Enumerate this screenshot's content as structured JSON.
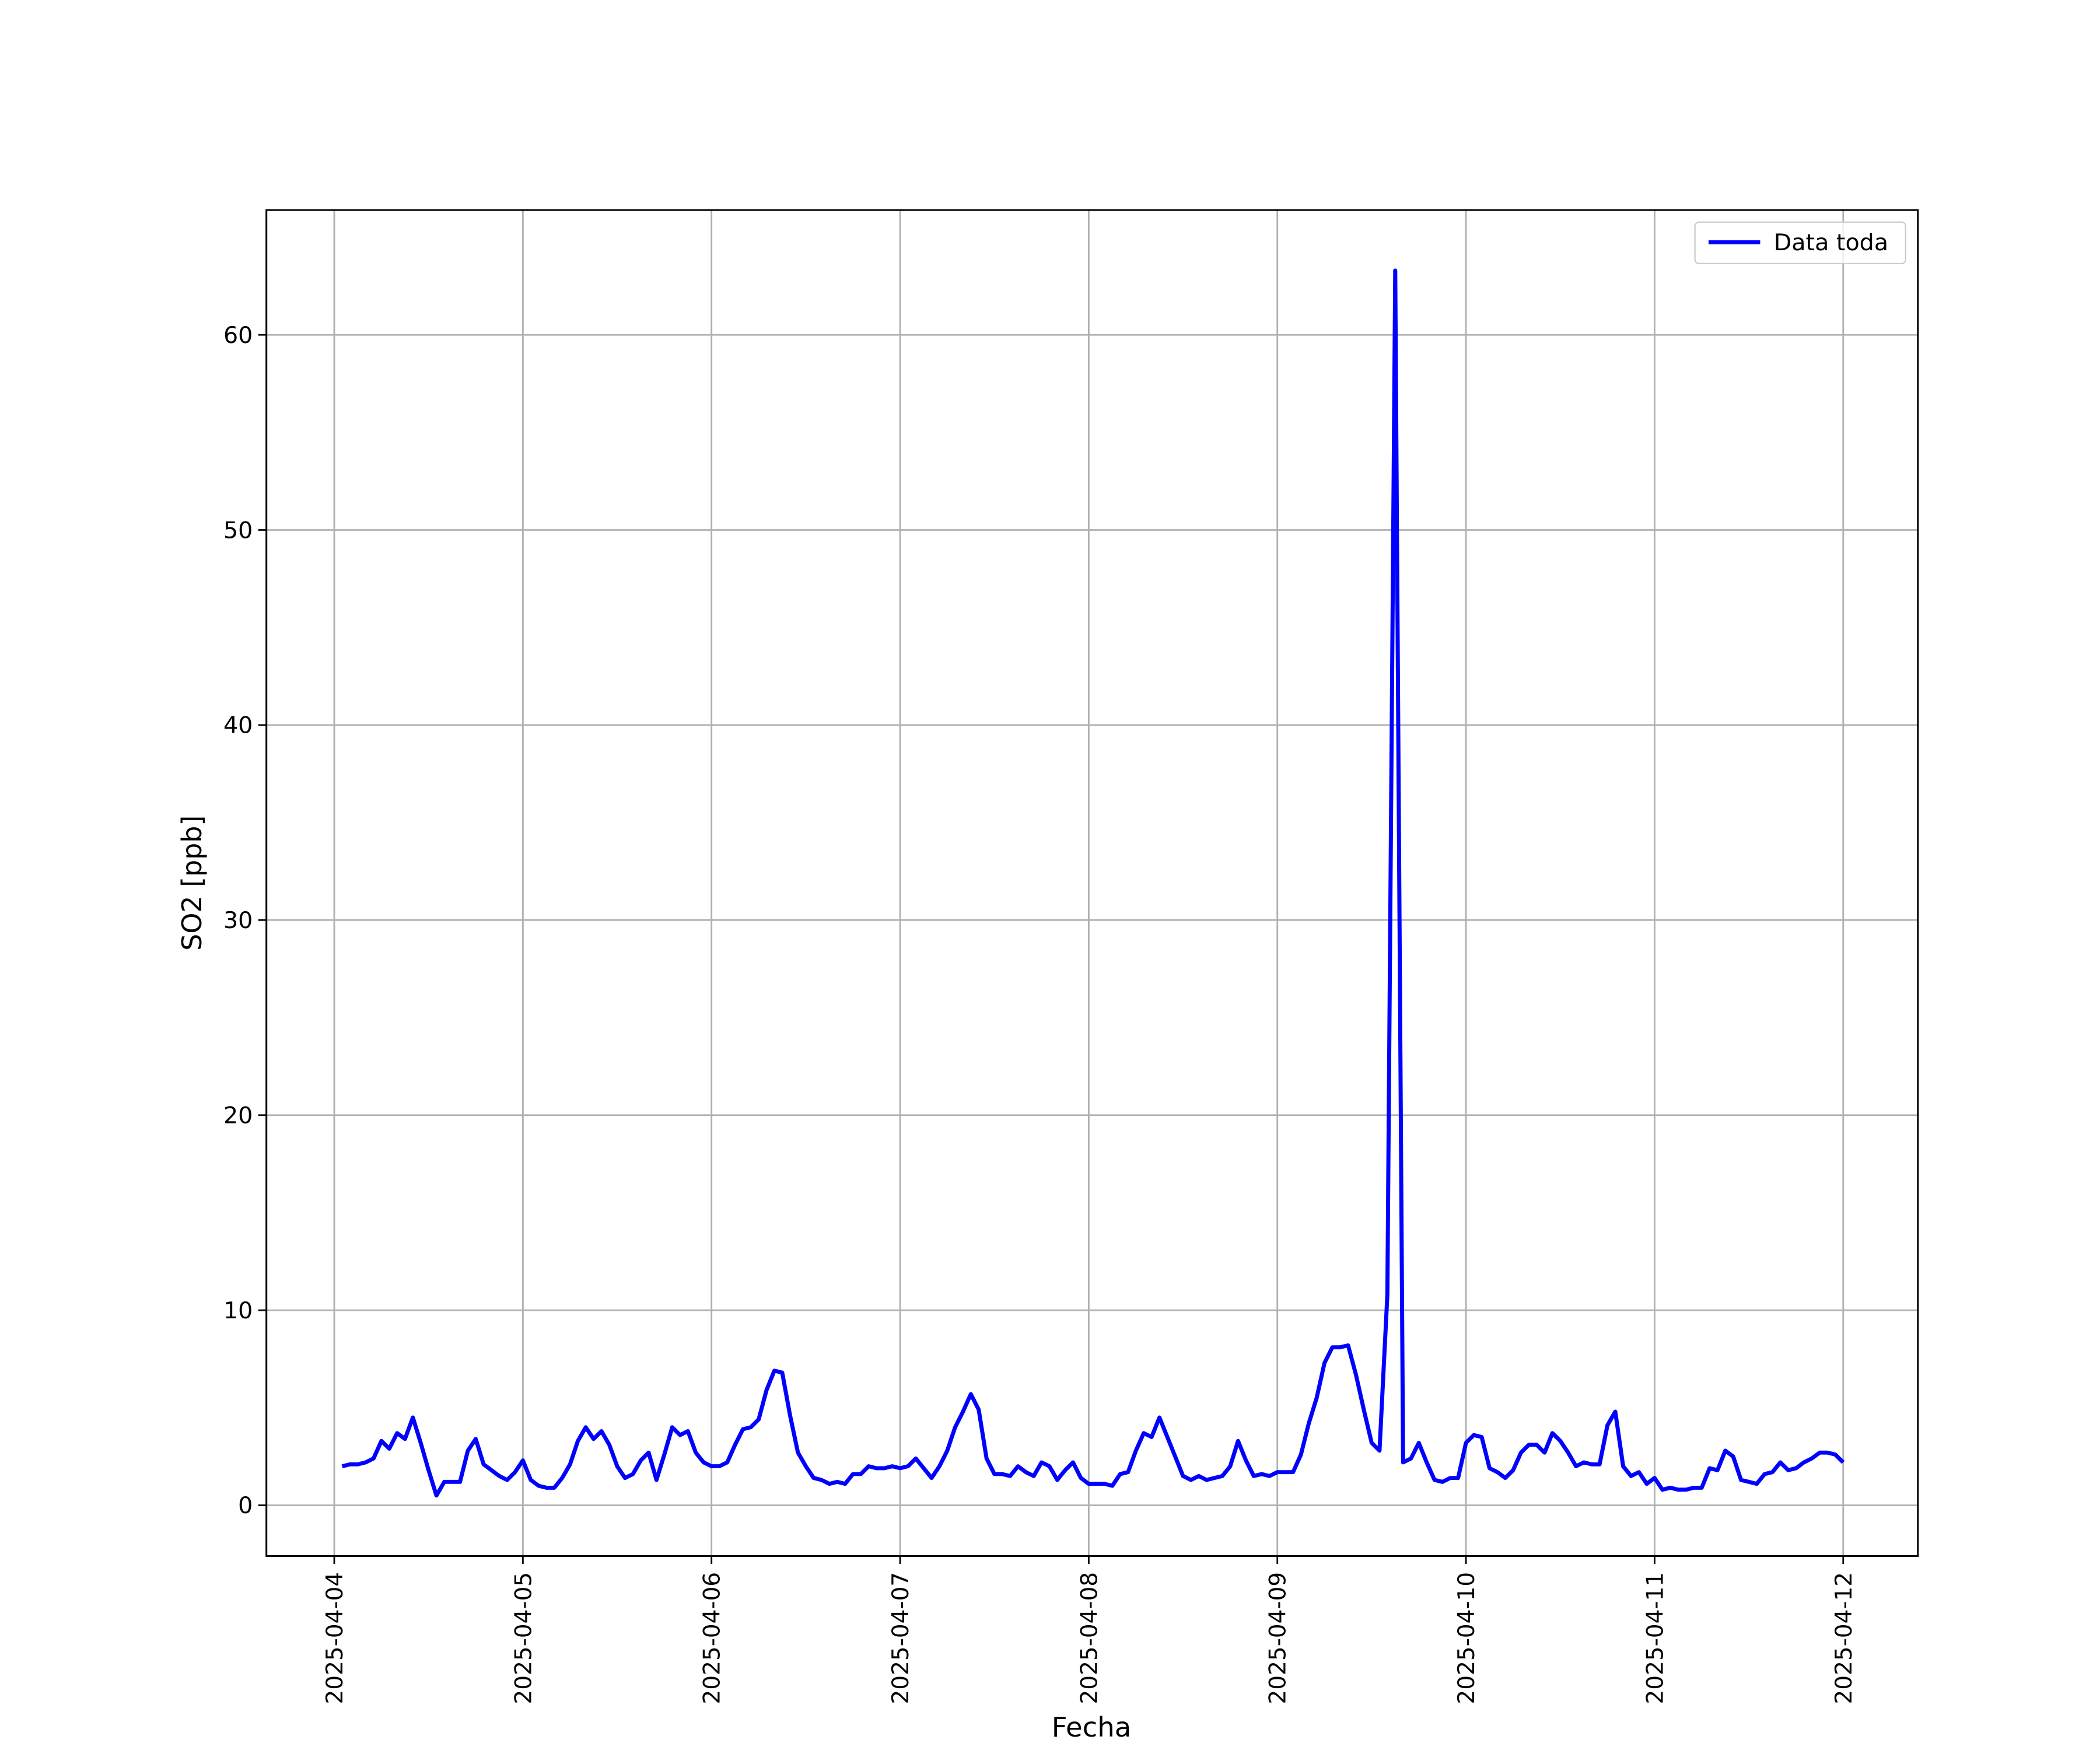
{
  "chart_data": {
    "type": "line",
    "xlabel": "Fecha",
    "ylabel": "SO2 [ppb]",
    "x": [
      "2025-04-04 01:00",
      "2025-04-04 02:00",
      "2025-04-04 03:00",
      "2025-04-04 04:00",
      "2025-04-04 05:00",
      "2025-04-04 06:00",
      "2025-04-04 07:00",
      "2025-04-04 08:00",
      "2025-04-04 09:00",
      "2025-04-04 10:00",
      "2025-04-04 11:00",
      "2025-04-04 12:00",
      "2025-04-04 13:00",
      "2025-04-04 14:00",
      "2025-04-04 15:00",
      "2025-04-04 16:00",
      "2025-04-04 17:00",
      "2025-04-04 18:00",
      "2025-04-04 19:00",
      "2025-04-04 20:00",
      "2025-04-04 21:00",
      "2025-04-04 22:00",
      "2025-04-04 23:00",
      "2025-04-05 00:00",
      "2025-04-05 01:00",
      "2025-04-05 02:00",
      "2025-04-05 03:00",
      "2025-04-05 04:00",
      "2025-04-05 05:00",
      "2025-04-05 06:00",
      "2025-04-05 07:00",
      "2025-04-05 08:00",
      "2025-04-05 09:00",
      "2025-04-05 10:00",
      "2025-04-05 11:00",
      "2025-04-05 12:00",
      "2025-04-05 13:00",
      "2025-04-05 14:00",
      "2025-04-05 15:00",
      "2025-04-05 16:00",
      "2025-04-05 17:00",
      "2025-04-05 18:00",
      "2025-04-05 19:00",
      "2025-04-05 20:00",
      "2025-04-05 21:00",
      "2025-04-05 22:00",
      "2025-04-05 23:00",
      "2025-04-06 00:00",
      "2025-04-06 01:00",
      "2025-04-06 02:00",
      "2025-04-06 03:00",
      "2025-04-06 04:00",
      "2025-04-06 05:00",
      "2025-04-06 06:00",
      "2025-04-06 07:00",
      "2025-04-06 08:00",
      "2025-04-06 09:00",
      "2025-04-06 10:00",
      "2025-04-06 11:00",
      "2025-04-06 12:00",
      "2025-04-06 13:00",
      "2025-04-06 14:00",
      "2025-04-06 15:00",
      "2025-04-06 16:00",
      "2025-04-06 17:00",
      "2025-04-06 18:00",
      "2025-04-06 19:00",
      "2025-04-06 20:00",
      "2025-04-06 21:00",
      "2025-04-06 22:00",
      "2025-04-06 23:00",
      "2025-04-07 00:00",
      "2025-04-07 01:00",
      "2025-04-07 02:00",
      "2025-04-07 03:00",
      "2025-04-07 04:00",
      "2025-04-07 05:00",
      "2025-04-07 06:00",
      "2025-04-07 07:00",
      "2025-04-07 08:00",
      "2025-04-07 09:00",
      "2025-04-07 10:00",
      "2025-04-07 11:00",
      "2025-04-07 12:00",
      "2025-04-07 13:00",
      "2025-04-07 14:00",
      "2025-04-07 15:00",
      "2025-04-07 16:00",
      "2025-04-07 17:00",
      "2025-04-07 18:00",
      "2025-04-07 19:00",
      "2025-04-07 20:00",
      "2025-04-07 21:00",
      "2025-04-07 22:00",
      "2025-04-07 23:00",
      "2025-04-08 00:00",
      "2025-04-08 01:00",
      "2025-04-08 02:00",
      "2025-04-08 03:00",
      "2025-04-08 04:00",
      "2025-04-08 05:00",
      "2025-04-08 06:00",
      "2025-04-08 07:00",
      "2025-04-08 08:00",
      "2025-04-08 09:00",
      "2025-04-08 10:00",
      "2025-04-08 11:00",
      "2025-04-08 12:00",
      "2025-04-08 13:00",
      "2025-04-08 14:00",
      "2025-04-08 15:00",
      "2025-04-08 16:00",
      "2025-04-08 17:00",
      "2025-04-08 18:00",
      "2025-04-08 19:00",
      "2025-04-08 20:00",
      "2025-04-08 21:00",
      "2025-04-08 22:00",
      "2025-04-08 23:00",
      "2025-04-09 00:00",
      "2025-04-09 01:00",
      "2025-04-09 02:00",
      "2025-04-09 03:00",
      "2025-04-09 04:00",
      "2025-04-09 05:00",
      "2025-04-09 06:00",
      "2025-04-09 07:00",
      "2025-04-09 08:00",
      "2025-04-09 09:00",
      "2025-04-09 10:00",
      "2025-04-09 11:00",
      "2025-04-09 12:00",
      "2025-04-09 13:00",
      "2025-04-09 14:00",
      "2025-04-09 15:00",
      "2025-04-09 16:00",
      "2025-04-09 17:00",
      "2025-04-09 18:00",
      "2025-04-09 19:00",
      "2025-04-09 20:00",
      "2025-04-09 21:00",
      "2025-04-09 22:00",
      "2025-04-09 23:00",
      "2025-04-10 00:00",
      "2025-04-10 01:00",
      "2025-04-10 02:00",
      "2025-04-10 03:00",
      "2025-04-10 04:00",
      "2025-04-10 05:00",
      "2025-04-10 06:00",
      "2025-04-10 07:00",
      "2025-04-10 08:00",
      "2025-04-10 09:00",
      "2025-04-10 10:00",
      "2025-04-10 11:00",
      "2025-04-10 12:00",
      "2025-04-10 13:00",
      "2025-04-10 14:00",
      "2025-04-10 15:00",
      "2025-04-10 16:00",
      "2025-04-10 17:00",
      "2025-04-10 18:00",
      "2025-04-10 19:00",
      "2025-04-10 20:00",
      "2025-04-10 21:00",
      "2025-04-10 22:00",
      "2025-04-10 23:00",
      "2025-04-11 00:00",
      "2025-04-11 01:00",
      "2025-04-11 02:00",
      "2025-04-11 03:00",
      "2025-04-11 04:00",
      "2025-04-11 05:00",
      "2025-04-11 06:00",
      "2025-04-11 07:00",
      "2025-04-11 08:00",
      "2025-04-11 09:00",
      "2025-04-11 10:00",
      "2025-04-11 11:00",
      "2025-04-11 12:00",
      "2025-04-11 13:00",
      "2025-04-11 14:00",
      "2025-04-11 15:00",
      "2025-04-11 16:00",
      "2025-04-11 17:00",
      "2025-04-11 18:00",
      "2025-04-11 19:00",
      "2025-04-11 20:00",
      "2025-04-11 21:00",
      "2025-04-11 22:00",
      "2025-04-11 23:00",
      "2025-04-12 00:00"
    ],
    "series": [
      {
        "name": "Data toda",
        "color": "#0000ff",
        "values": [
          2.0,
          2.1,
          2.1,
          2.2,
          2.4,
          3.3,
          2.9,
          3.7,
          3.4,
          4.5,
          3.2,
          1.8,
          0.5,
          1.2,
          1.2,
          1.2,
          2.8,
          3.4,
          2.1,
          1.8,
          1.5,
          1.3,
          1.7,
          2.3,
          1.3,
          1.0,
          0.9,
          0.9,
          1.4,
          2.1,
          3.3,
          4.0,
          3.4,
          3.8,
          3.1,
          2.0,
          1.4,
          1.6,
          2.3,
          2.7,
          1.3,
          2.6,
          4.0,
          3.6,
          3.8,
          2.7,
          2.2,
          2.0,
          2.0,
          2.2,
          3.1,
          3.9,
          4.0,
          4.4,
          5.9,
          6.9,
          6.8,
          4.6,
          2.7,
          2.0,
          1.4,
          1.3,
          1.1,
          1.2,
          1.1,
          1.6,
          1.6,
          2.0,
          1.9,
          1.9,
          2.0,
          1.9,
          2.0,
          2.4,
          1.9,
          1.4,
          2.0,
          2.8,
          4.0,
          4.8,
          5.7,
          4.9,
          2.4,
          1.6,
          1.6,
          1.5,
          2.0,
          1.7,
          1.5,
          2.2,
          2.0,
          1.3,
          1.8,
          2.2,
          1.4,
          1.1,
          1.1,
          1.1,
          1.0,
          1.6,
          1.7,
          2.8,
          3.7,
          3.5,
          4.5,
          3.5,
          2.5,
          1.5,
          1.3,
          1.5,
          1.3,
          1.4,
          1.5,
          2.0,
          3.3,
          2.3,
          1.5,
          1.6,
          1.5,
          1.7,
          1.7,
          1.7,
          2.6,
          4.2,
          5.5,
          7.3,
          8.1,
          8.1,
          8.2,
          6.7,
          4.9,
          3.2,
          2.8,
          10.8,
          63.3,
          2.2,
          2.4,
          3.2,
          2.2,
          1.3,
          1.2,
          1.4,
          1.4,
          3.2,
          3.6,
          3.5,
          1.9,
          1.7,
          1.4,
          1.8,
          2.7,
          3.1,
          3.1,
          2.7,
          3.7,
          3.3,
          2.7,
          2.0,
          2.2,
          2.1,
          2.1,
          4.1,
          4.8,
          2.0,
          1.5,
          1.7,
          1.1,
          1.4,
          0.8,
          0.9,
          0.8,
          0.8,
          0.9,
          0.9,
          1.9,
          1.8,
          2.8,
          2.5,
          1.3,
          1.2,
          1.1,
          1.6,
          1.7,
          2.2,
          1.8,
          1.9,
          2.2,
          2.4,
          2.7,
          2.7,
          2.6,
          2.2
        ]
      }
    ],
    "xlim": [
      "2025-04-03 15:22",
      "2025-04-12 09:30"
    ],
    "xticks": [
      "2025-04-04",
      "2025-04-05",
      "2025-04-06",
      "2025-04-07",
      "2025-04-08",
      "2025-04-09",
      "2025-04-10",
      "2025-04-11",
      "2025-04-12"
    ],
    "ylim": [
      -2.6,
      66.4
    ],
    "yticks": [
      0,
      10,
      20,
      30,
      40,
      50,
      60
    ],
    "grid": true,
    "legend": "upper right"
  }
}
